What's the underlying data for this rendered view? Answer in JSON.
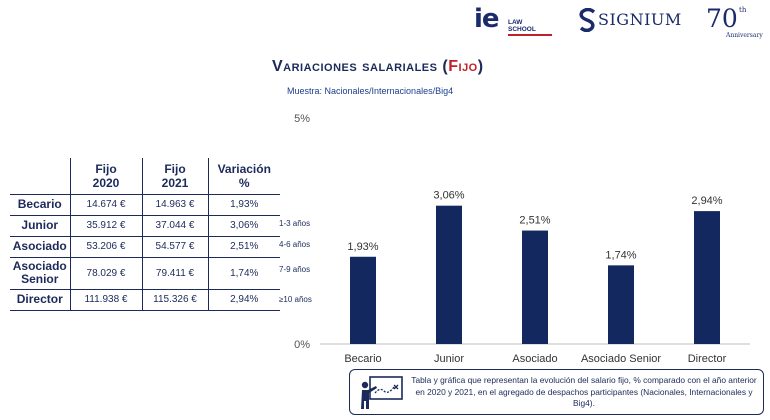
{
  "header": {
    "ie_mark": "ie",
    "ie_sub": "LAW SCHOOL",
    "signium": "SIGNIUM",
    "anniv_number": "70",
    "anniv_suffix": "th",
    "anniv_word": "Anniversary"
  },
  "title_main": "Variaciones salariales (",
  "title_accent": "Fijo",
  "title_end": ")",
  "subtitle": "Muestra: Nacionales/Internacionales/Big4",
  "table": {
    "headers": [
      "Fijo\n2020",
      "Fijo\n2021",
      "Variación\n%"
    ],
    "rows": [
      {
        "label": "Becario",
        "fijo2020": "14.674 €",
        "fijo2021": "14.963 €",
        "var": "1,93%"
      },
      {
        "label": "Junior",
        "fijo2020": "35.912 €",
        "fijo2021": "37.044 €",
        "var": "3,06%"
      },
      {
        "label": "Asociado",
        "fijo2020": "53.206 €",
        "fijo2021": "54.577 €",
        "var": "2,51%"
      },
      {
        "label": "Asociado Senior",
        "fijo2020": "78.029 €",
        "fijo2021": "79.411 €",
        "var": "1,74%"
      },
      {
        "label": "Director",
        "fijo2020": "111.938 €",
        "fijo2021": "115.326 €",
        "var": "2,94%"
      }
    ]
  },
  "years": [
    "1-3 años",
    "4-6 años",
    "7-9 años",
    "≥10 años"
  ],
  "chart_data": {
    "type": "bar",
    "categories": [
      "Becario",
      "Junior",
      "Asociado",
      "Asociado Senior",
      "Director"
    ],
    "values": [
      1.93,
      3.06,
      2.51,
      1.74,
      2.94
    ],
    "data_labels": [
      "1,93%",
      "3,06%",
      "2,51%",
      "1,74%",
      "2,94%"
    ],
    "ylim": [
      0,
      5
    ],
    "yticks": [
      "0%",
      "5%"
    ],
    "title": "",
    "xlabel": "",
    "ylabel": "",
    "bar_color": "#13285e",
    "grid": false
  },
  "note_text": "Tabla y gráfica que representan la evolución del salario fijo, % comparado con el año anterior en 2020 y 2021, en el agregado de despachos participantes (Nacionales, Internacionales y Big4).",
  "colors": {
    "navy": "#1b2a5a",
    "accent": "#c0202a"
  }
}
